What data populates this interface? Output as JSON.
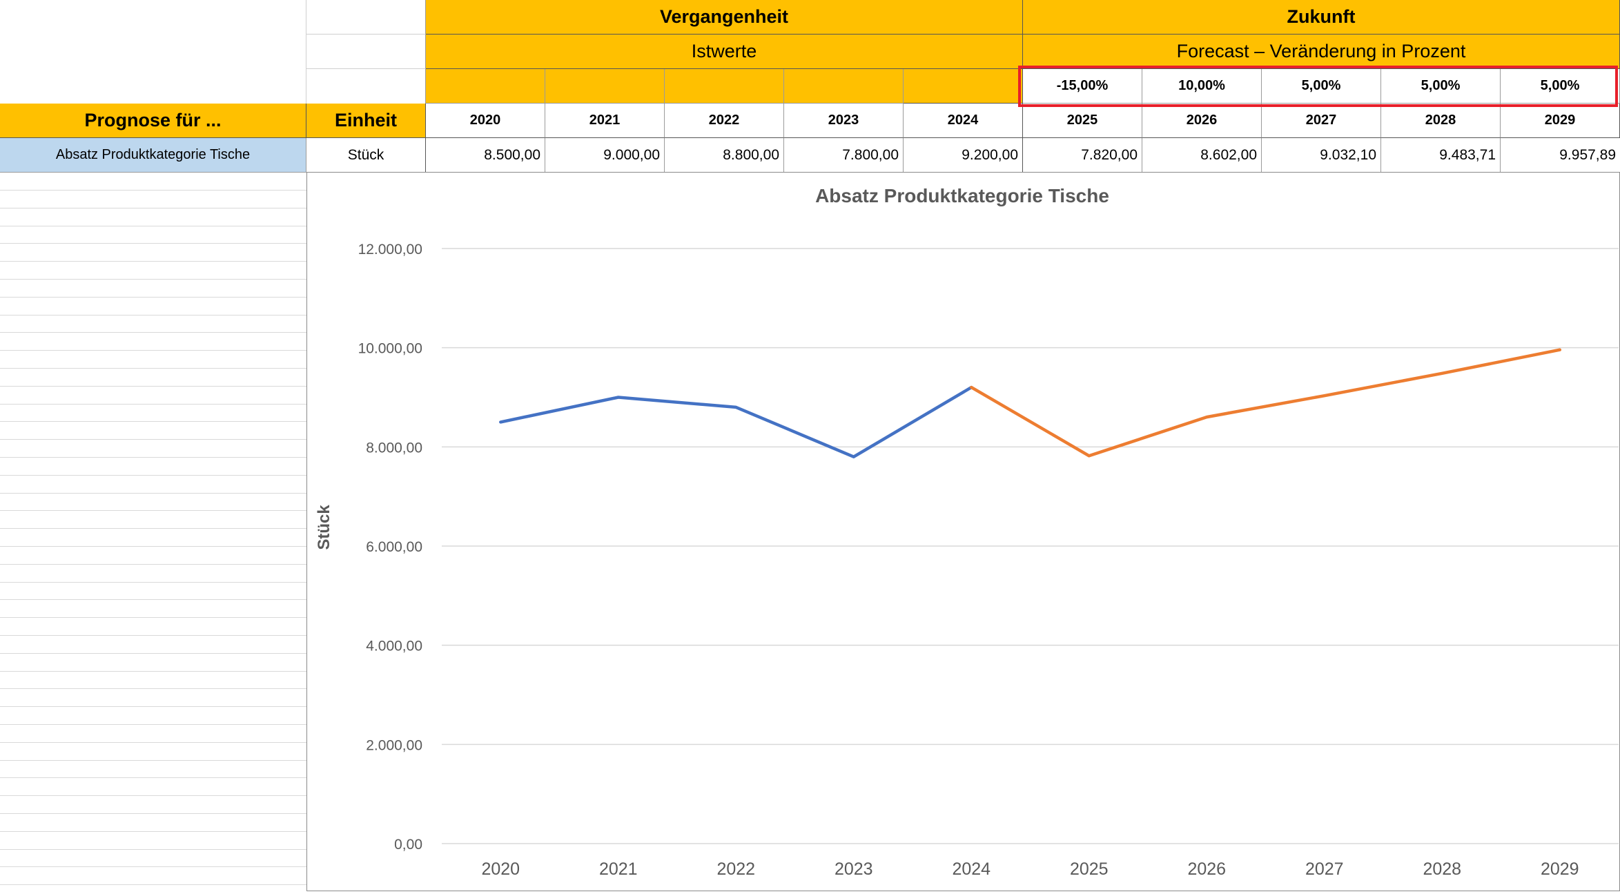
{
  "table": {
    "header_past": "Vergangenheit",
    "header_future": "Zukunft",
    "sub_past": "Istwerte",
    "sub_future": "Forecast – Veränderung in Prozent",
    "col_prognose": "Prognose für ...",
    "col_einheit": "Einheit",
    "years": [
      "2020",
      "2021",
      "2022",
      "2023",
      "2024",
      "2025",
      "2026",
      "2027",
      "2028",
      "2029"
    ],
    "percentages": [
      "-15,00%",
      "10,00%",
      "5,00%",
      "5,00%",
      "5,00%"
    ],
    "row_label": "Absatz Produktkategorie Tische",
    "row_unit": "Stück",
    "row_values": [
      "8.500,00",
      "9.000,00",
      "8.800,00",
      "7.800,00",
      "9.200,00",
      "7.820,00",
      "8.602,00",
      "9.032,10",
      "9.483,71",
      "9.957,89"
    ]
  },
  "colors": {
    "header_fill": "#FFC000",
    "row_label_fill": "#BDD7EE",
    "highlight_border": "#E8202A",
    "series_past": "#4472C4",
    "series_future": "#ED7D31"
  },
  "chart_data": {
    "type": "line",
    "title": "Absatz Produktkategorie Tische",
    "ylabel": "Stück",
    "xlabel": "",
    "categories": [
      "2020",
      "2021",
      "2022",
      "2023",
      "2024",
      "2025",
      "2026",
      "2027",
      "2028",
      "2029"
    ],
    "ylim": [
      0,
      12000
    ],
    "yticks": [
      0,
      2000,
      4000,
      6000,
      8000,
      10000,
      12000
    ],
    "ytick_labels": [
      "0,00",
      "2.000,00",
      "4.000,00",
      "6.000,00",
      "8.000,00",
      "10.000,00",
      "12.000,00"
    ],
    "grid": true,
    "legend": "none",
    "series": [
      {
        "values": [
          8500,
          9000,
          8800,
          7800,
          9200,
          null,
          null,
          null,
          null,
          null
        ],
        "color": "#4472C4"
      },
      {
        "values": [
          null,
          null,
          null,
          null,
          9200,
          7820,
          8602,
          9032.1,
          9483.71,
          9957.89
        ],
        "color": "#ED7D31"
      }
    ]
  }
}
